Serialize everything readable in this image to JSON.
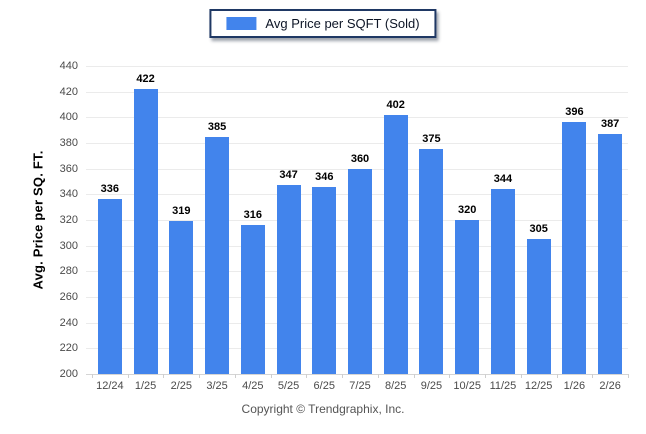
{
  "legend": {
    "label": "Avg Price per SQFT (Sold)"
  },
  "footer": {
    "copyright": "Copyright © Trendgraphix, Inc."
  },
  "colors": {
    "bar": "#4284ec",
    "legend_border": "#1f3864",
    "grid": "#ebebeb",
    "axis": "#d5d5d5",
    "tick_text": "#4a4a4a",
    "value_text": "#000000"
  },
  "chart_data": {
    "type": "bar",
    "categories": [
      "12/24",
      "1/25",
      "2/25",
      "3/25",
      "4/25",
      "5/25",
      "6/25",
      "7/25",
      "8/25",
      "9/25",
      "10/25",
      "11/25",
      "12/25",
      "1/26",
      "2/26"
    ],
    "values": [
      336,
      422,
      319,
      385,
      316,
      347,
      346,
      360,
      402,
      375,
      320,
      344,
      305,
      396,
      387
    ],
    "title": "",
    "xlabel": "",
    "ylabel": "Avg. Price per SQ. FT.",
    "ylim": [
      200,
      440
    ],
    "y_ticks": [
      200,
      220,
      240,
      260,
      280,
      300,
      320,
      340,
      360,
      380,
      400,
      420,
      440
    ],
    "grid": true,
    "legend_position": "top-center",
    "series_name": "Avg Price per SQFT (Sold)"
  }
}
